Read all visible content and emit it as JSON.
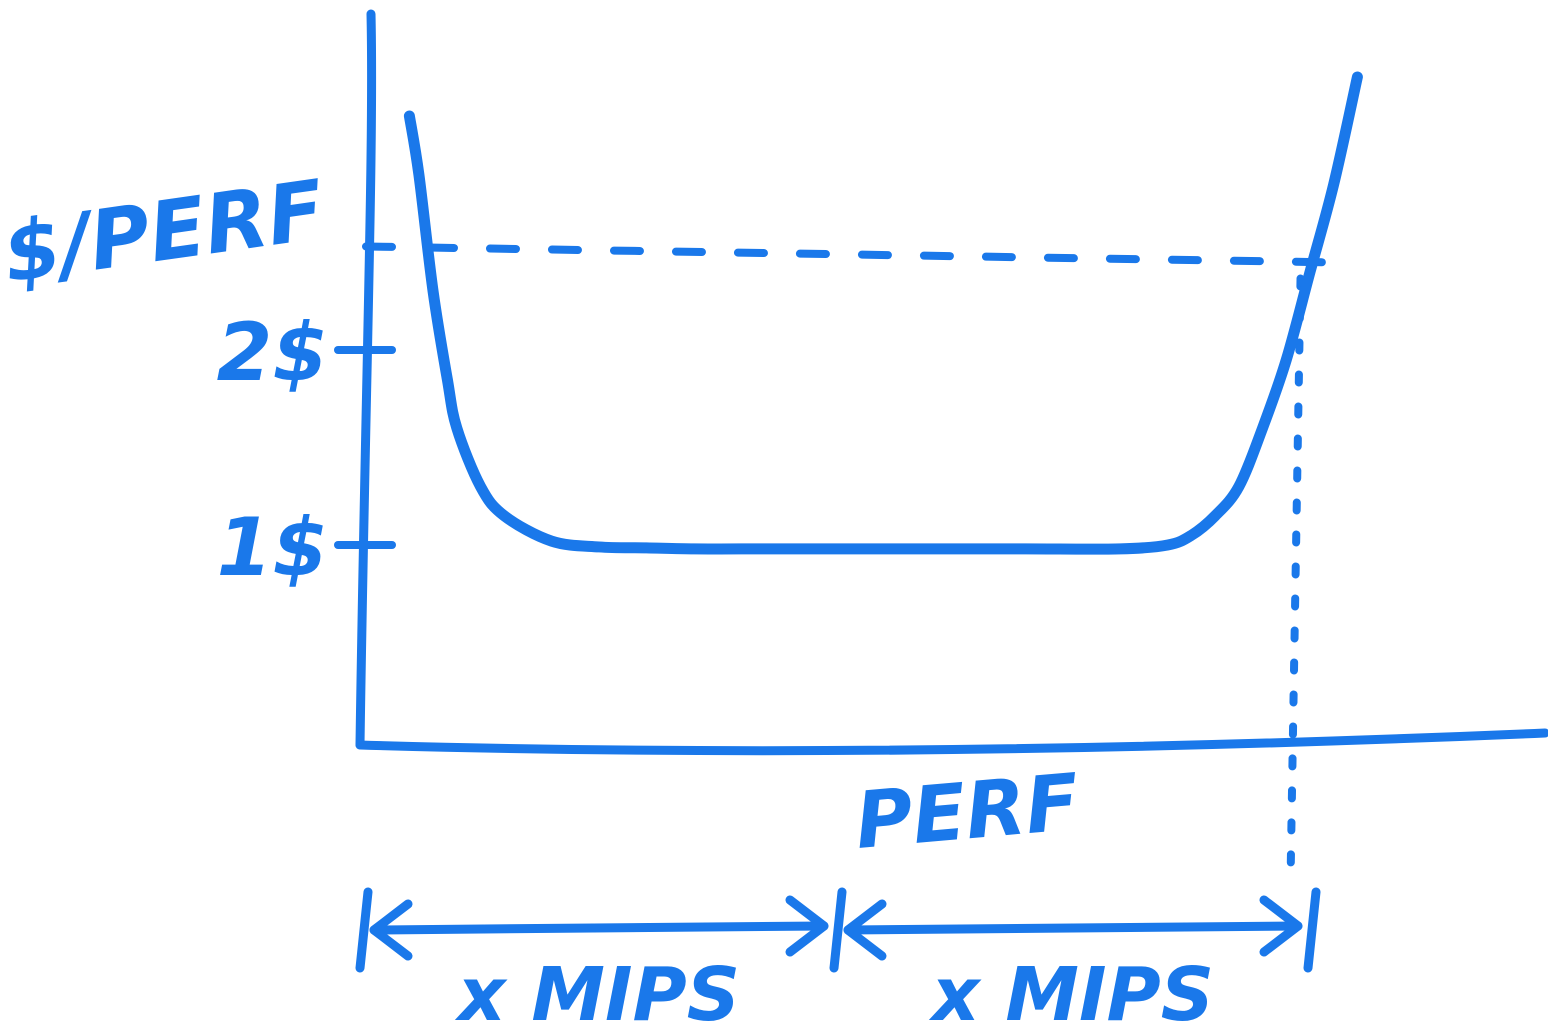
{
  "ink_color": "#1a78ea",
  "chart_data": {
    "type": "line",
    "ylabel": "$/PERF",
    "xlabel": "PERF",
    "yticks": [
      {
        "value": 1,
        "label": "1$"
      },
      {
        "value": 2,
        "label": "2$"
      }
    ],
    "series": [
      {
        "x": [
          0.1,
          0.12,
          0.15,
          0.18,
          0.2,
          0.25,
          0.3,
          0.4,
          0.5,
          0.6,
          0.7,
          0.8,
          1.0,
          1.2,
          1.4,
          1.6,
          1.7,
          1.75,
          1.8,
          1.85,
          1.9,
          1.95,
          2.0,
          2.05,
          2.1
        ],
        "y": [
          3.2,
          2.9,
          2.3,
          1.85,
          1.6,
          1.3,
          1.15,
          1.02,
          0.99,
          0.985,
          0.98,
          0.98,
          0.98,
          0.98,
          0.98,
          0.98,
          1.0,
          1.05,
          1.15,
          1.3,
          1.6,
          1.95,
          2.4,
          2.85,
          3.4
        ]
      }
    ],
    "reference_level_y": 2.5,
    "reference_x": 1.98,
    "spans": [
      {
        "from": 0,
        "to": 1,
        "label": "x MIPS"
      },
      {
        "from": 1,
        "to": 2,
        "label": "x MIPS"
      }
    ]
  }
}
